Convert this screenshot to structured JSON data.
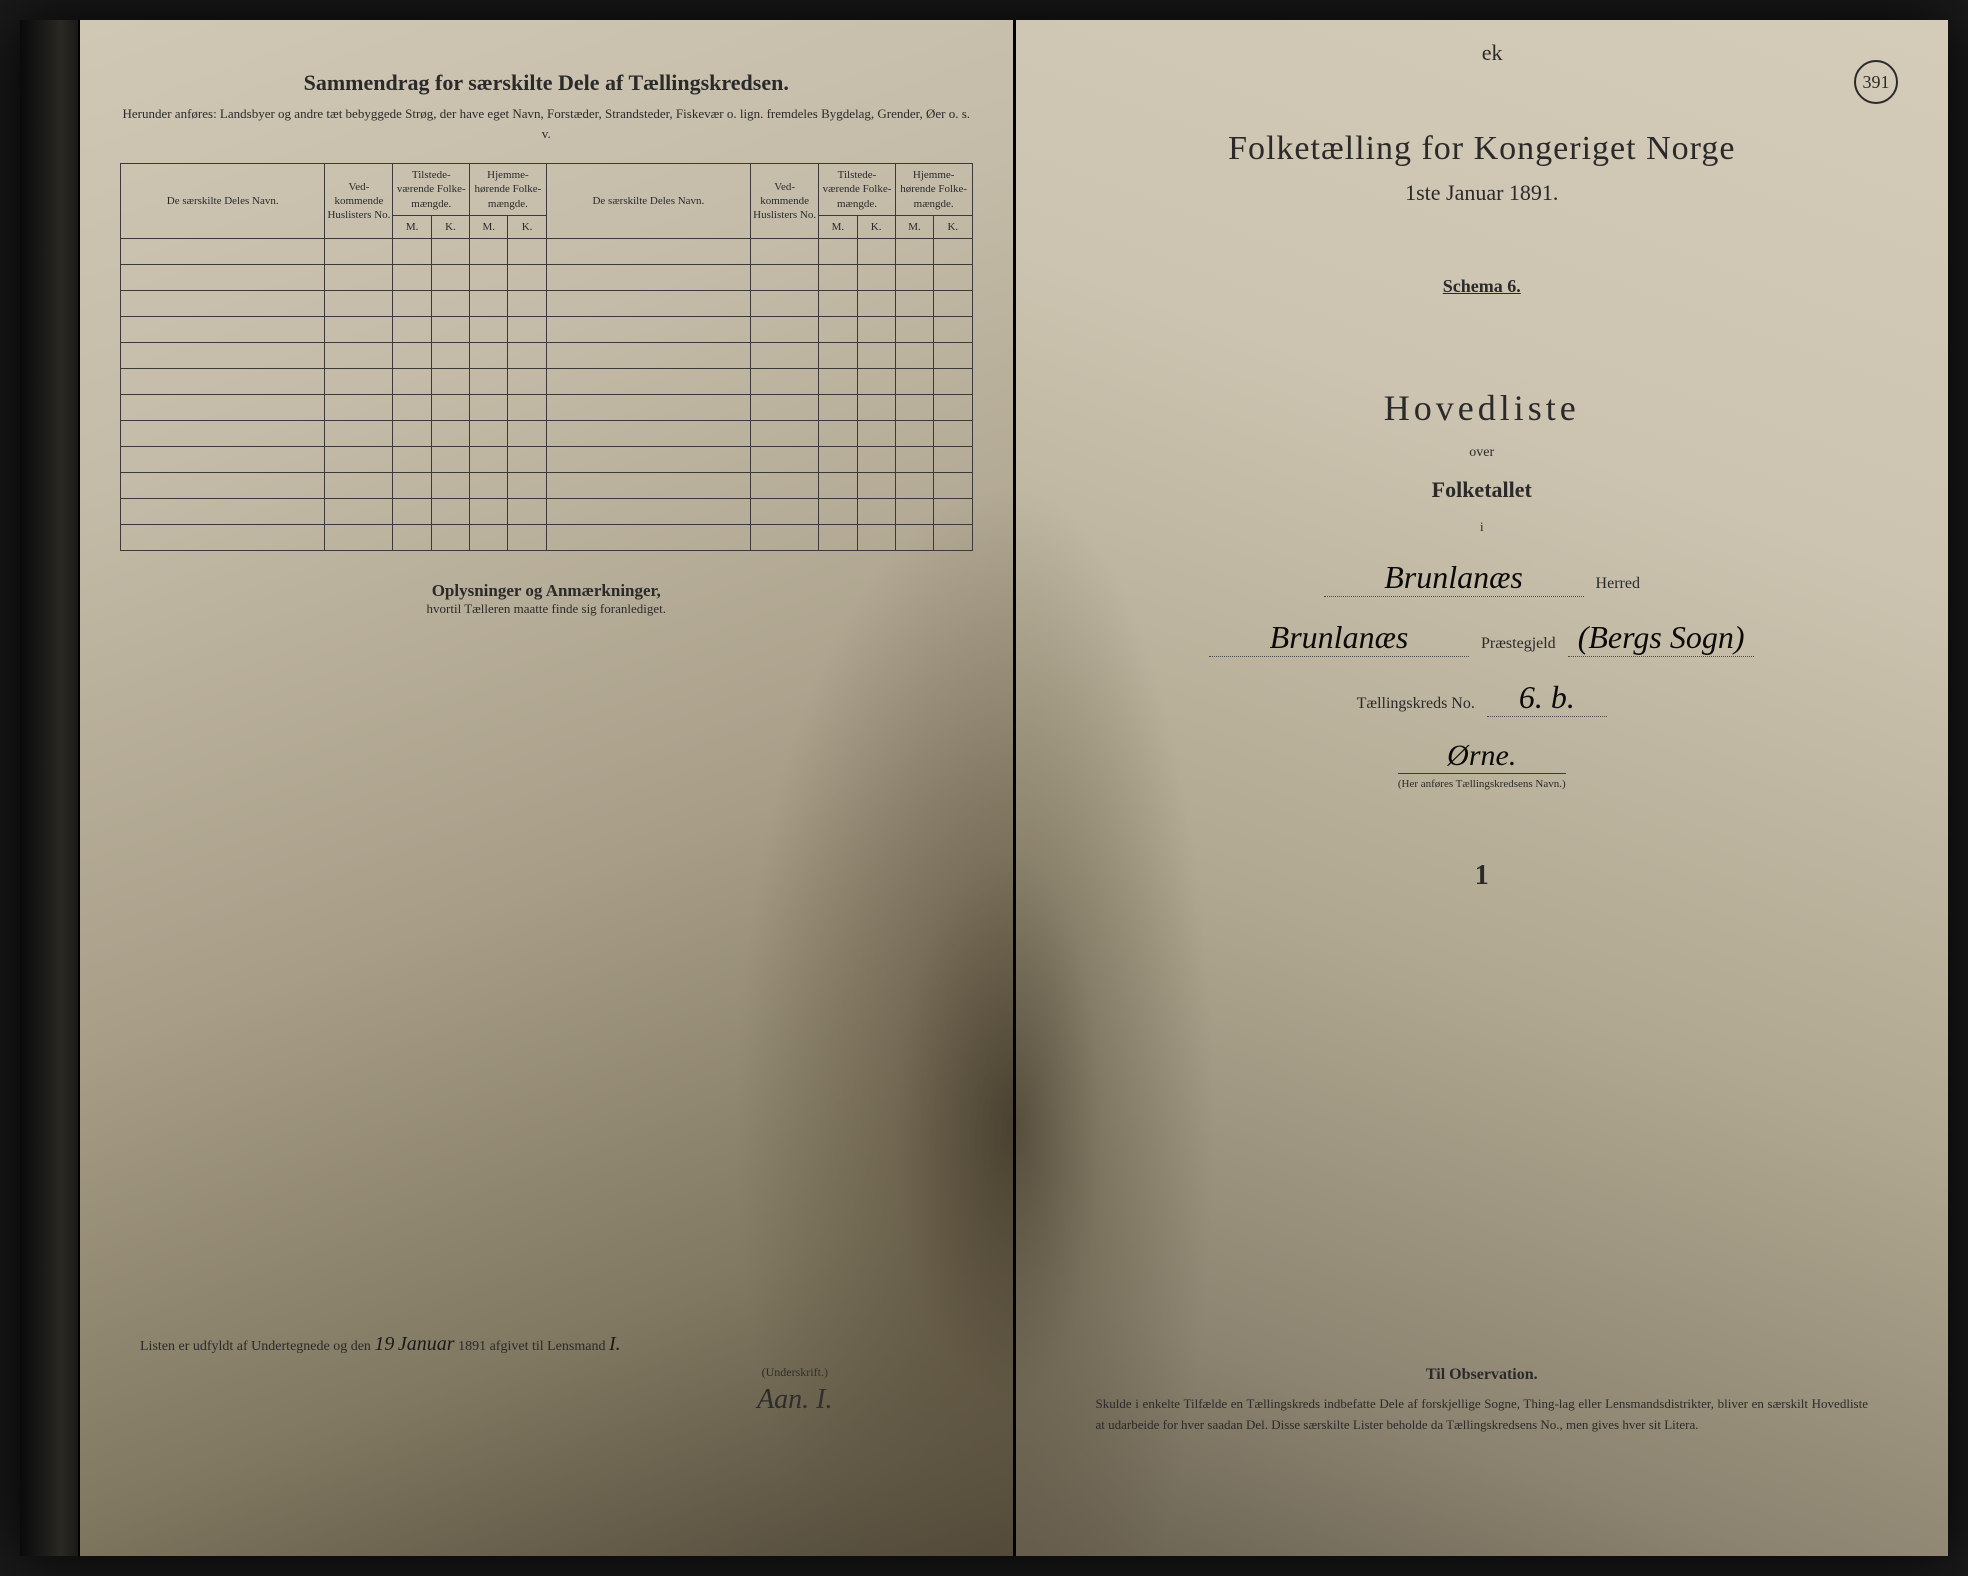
{
  "pageNumber": "391",
  "leftPage": {
    "topMark": "",
    "title": "Sammendrag for særskilte Dele af Tællingskredsen.",
    "subtitle": "Herunder anføres: Landsbyer og andre tæt bebyggede Strøg, der have eget Navn, Forstæder, Strandsteder, Fiskevær o. lign. fremdeles Bygdelag, Grender, Øer o. s. v.",
    "columns": {
      "name": "De særskilte Deles Navn.",
      "vedNo": "Ved-kommende Huslisters No.",
      "tilstede": "Tilstede-værende Folke-mængde.",
      "hjemme": "Hjemme-hørende Folke-mængde.",
      "m": "M.",
      "k": "K."
    },
    "rowCount": 12,
    "oplysninger": "Oplysninger og Anmærkninger,",
    "oplysningerSub": "hvortil Tælleren maatte finde sig foranlediget.",
    "listenPrefix": "Listen er udfyldt af Undertegnede og den",
    "listenDay": "19",
    "listenMonth": "Januar",
    "listenYear": "1891 afgivet til Lensmand",
    "lensmand": "I.",
    "underskriftLabel": "(Underskrift.)",
    "signature": "Aan. I."
  },
  "rightPage": {
    "topMark": "ek",
    "censusTitle": "Folketælling for Kongeriget Norge",
    "censusDate": "1ste Januar 1891.",
    "schema": "Schema 6.",
    "hovedliste": "Hovedliste",
    "over": "over",
    "folketallet": "Folketallet",
    "i": "i",
    "herred": {
      "value": "Brunlanæs",
      "label": "Herred"
    },
    "praestegjeld": {
      "value": "Brunlanæs",
      "label": "Præstegjeld",
      "extra": "(Bergs Sogn)"
    },
    "kredsNo": {
      "label": "Tællingskreds No.",
      "value": "6. b."
    },
    "kredsName": "Ørne.",
    "kredsNote": "(Her anføres Tællingskredsens Navn.)",
    "strayMark": "1",
    "observation": {
      "title": "Til Observation.",
      "text": "Skulde i enkelte Tilfælde en Tællingskreds indbefatte Dele af forskjellige Sogne, Thing-lag eller Lensmandsdistrikter, bliver en særskilt Hovedliste at udarbeide for hver saadan Del. Disse særskilte Lister beholde da Tællingskredsens No., men gives hver sit Litera."
    }
  },
  "colors": {
    "paperLight": "#d4ccb8",
    "paperMid": "#b8b09c",
    "paperDark": "#706858",
    "ink": "#2a2a2a",
    "background": "#1a1a1a"
  },
  "typography": {
    "titleSize": 34,
    "bodySize": 14,
    "handwritingFamily": "Brush Script MT"
  }
}
